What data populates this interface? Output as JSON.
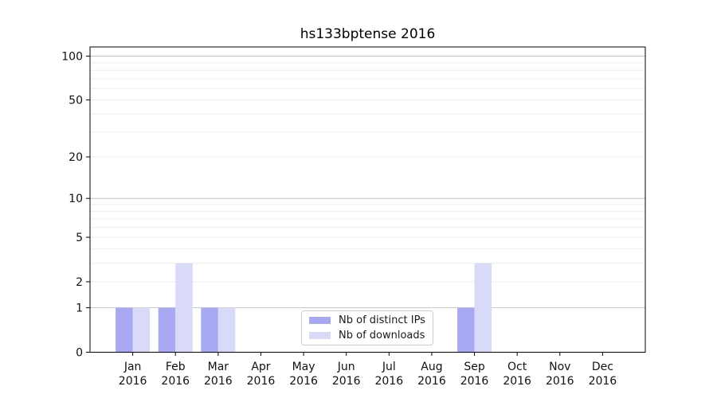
{
  "chart_data": {
    "type": "bar",
    "title": "hs133bptense 2016",
    "categories": [
      "Jan",
      "Feb",
      "Mar",
      "Apr",
      "May",
      "Jun",
      "Jul",
      "Aug",
      "Sep",
      "Oct",
      "Nov",
      "Dec"
    ],
    "x_year_label": "2016",
    "series": [
      {
        "name": "Nb of distinct IPs",
        "color": "#a8a8f5",
        "values": [
          1,
          1,
          1,
          0,
          0,
          0,
          0,
          0,
          1,
          0,
          0,
          0
        ]
      },
      {
        "name": "Nb of downloads",
        "color": "#d9d9f8",
        "values": [
          1,
          3,
          1,
          0,
          0,
          0,
          0,
          0,
          3,
          0,
          0,
          0
        ]
      }
    ],
    "yticks": [
      0,
      1,
      2,
      5,
      10,
      20,
      50,
      100
    ],
    "major_gridlines": [
      1,
      10,
      100
    ],
    "minor_gridlines": [
      3,
      4,
      6,
      7,
      8,
      9,
      30,
      40,
      60,
      70,
      80,
      90
    ],
    "ylim": [
      0,
      100
    ],
    "scale": "log1p",
    "grid": true,
    "legend_position": "lower center inside",
    "colors": {
      "spine": "#000000",
      "major_grid": "#c4c4c4",
      "minor_grid": "#ececec",
      "text": "#111111"
    }
  }
}
